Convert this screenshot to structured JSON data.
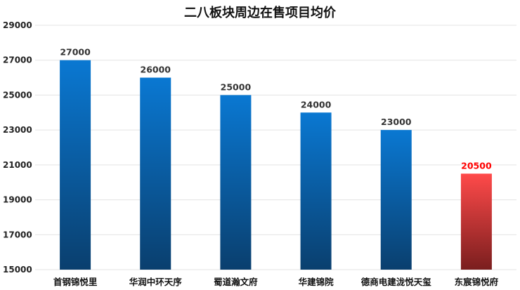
{
  "chart_data": {
    "type": "bar",
    "title": "二八板块周边在售项目均价",
    "xlabel": "",
    "ylabel": "",
    "categories": [
      "首钢锦悦里",
      "华润中环天序",
      "蜀道瀚文府",
      "华建锦院",
      "德商电建泷悦天玺",
      "东宸锦悦府"
    ],
    "values": [
      27000,
      26000,
      25000,
      24000,
      23000,
      20500
    ],
    "value_labels": [
      "27000",
      "26000",
      "25000",
      "24000",
      "23000",
      "20500"
    ],
    "ylim": [
      15000,
      29000
    ],
    "yticks": [
      "15000",
      "17000",
      "19000",
      "21000",
      "23000",
      "25000",
      "27000",
      "29000"
    ],
    "grid": true,
    "legend": "none",
    "colors": {
      "bar_top": "#0a78d2",
      "bar_bottom": "#0a3f6e",
      "highlight_top": "#ff4a4a",
      "highlight_bottom": "#7a1e1e",
      "highlight_label": "#ff0000",
      "label": "#333333",
      "grid": "#e3e3e3"
    },
    "highlight_index": 5
  }
}
